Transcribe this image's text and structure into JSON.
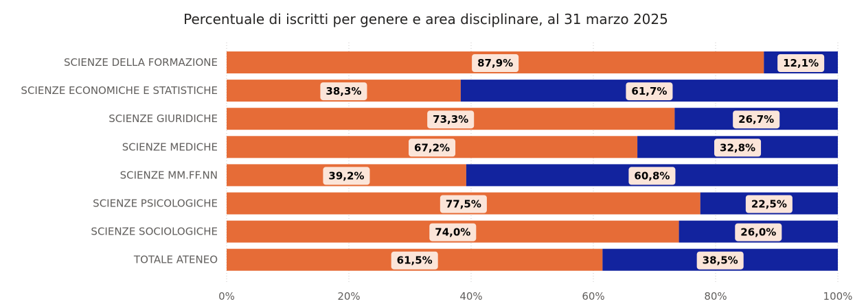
{
  "chart_data": {
    "type": "bar",
    "orientation": "horizontal",
    "stacked": true,
    "title": "Percentuale di iscritti per genere e area disciplinare, al 31 marzo 2025",
    "categories": [
      "SCIENZE DELLA FORMAZIONE",
      "SCIENZE ECONOMICHE E STATISTICHE",
      "SCIENZE GIURIDICHE",
      "SCIENZE MEDICHE",
      "SCIENZE MM.FF.NN",
      "SCIENZE PSICOLOGICHE",
      "SCIENZE SOCIOLOGICHE",
      "TOTALE ATENEO"
    ],
    "series": [
      {
        "color": "#e66c37",
        "values": [
          87.9,
          38.3,
          73.3,
          67.2,
          39.2,
          77.5,
          74.0,
          61.5
        ],
        "labels": [
          "87,9%",
          "38,3%",
          "73,3%",
          "67,2%",
          "39,2%",
          "77,5%",
          "74,0%",
          "61,5%"
        ]
      },
      {
        "color": "#12239e",
        "values": [
          12.1,
          61.7,
          26.7,
          32.8,
          60.8,
          22.5,
          26.0,
          38.5
        ],
        "labels": [
          "12,1%",
          "61,7%",
          "26,7%",
          "32,8%",
          "60,8%",
          "22,5%",
          "26,0%",
          "38,5%"
        ]
      }
    ],
    "xlim": [
      0,
      100
    ],
    "xticks": [
      0,
      20,
      40,
      60,
      80,
      100
    ],
    "xtick_labels": [
      "0%",
      "20%",
      "40%",
      "60%",
      "80%",
      "100%"
    ],
    "xlabel": "",
    "ylabel": "",
    "grid": true,
    "legend": false,
    "data_label_background": "#fbe5d9"
  }
}
